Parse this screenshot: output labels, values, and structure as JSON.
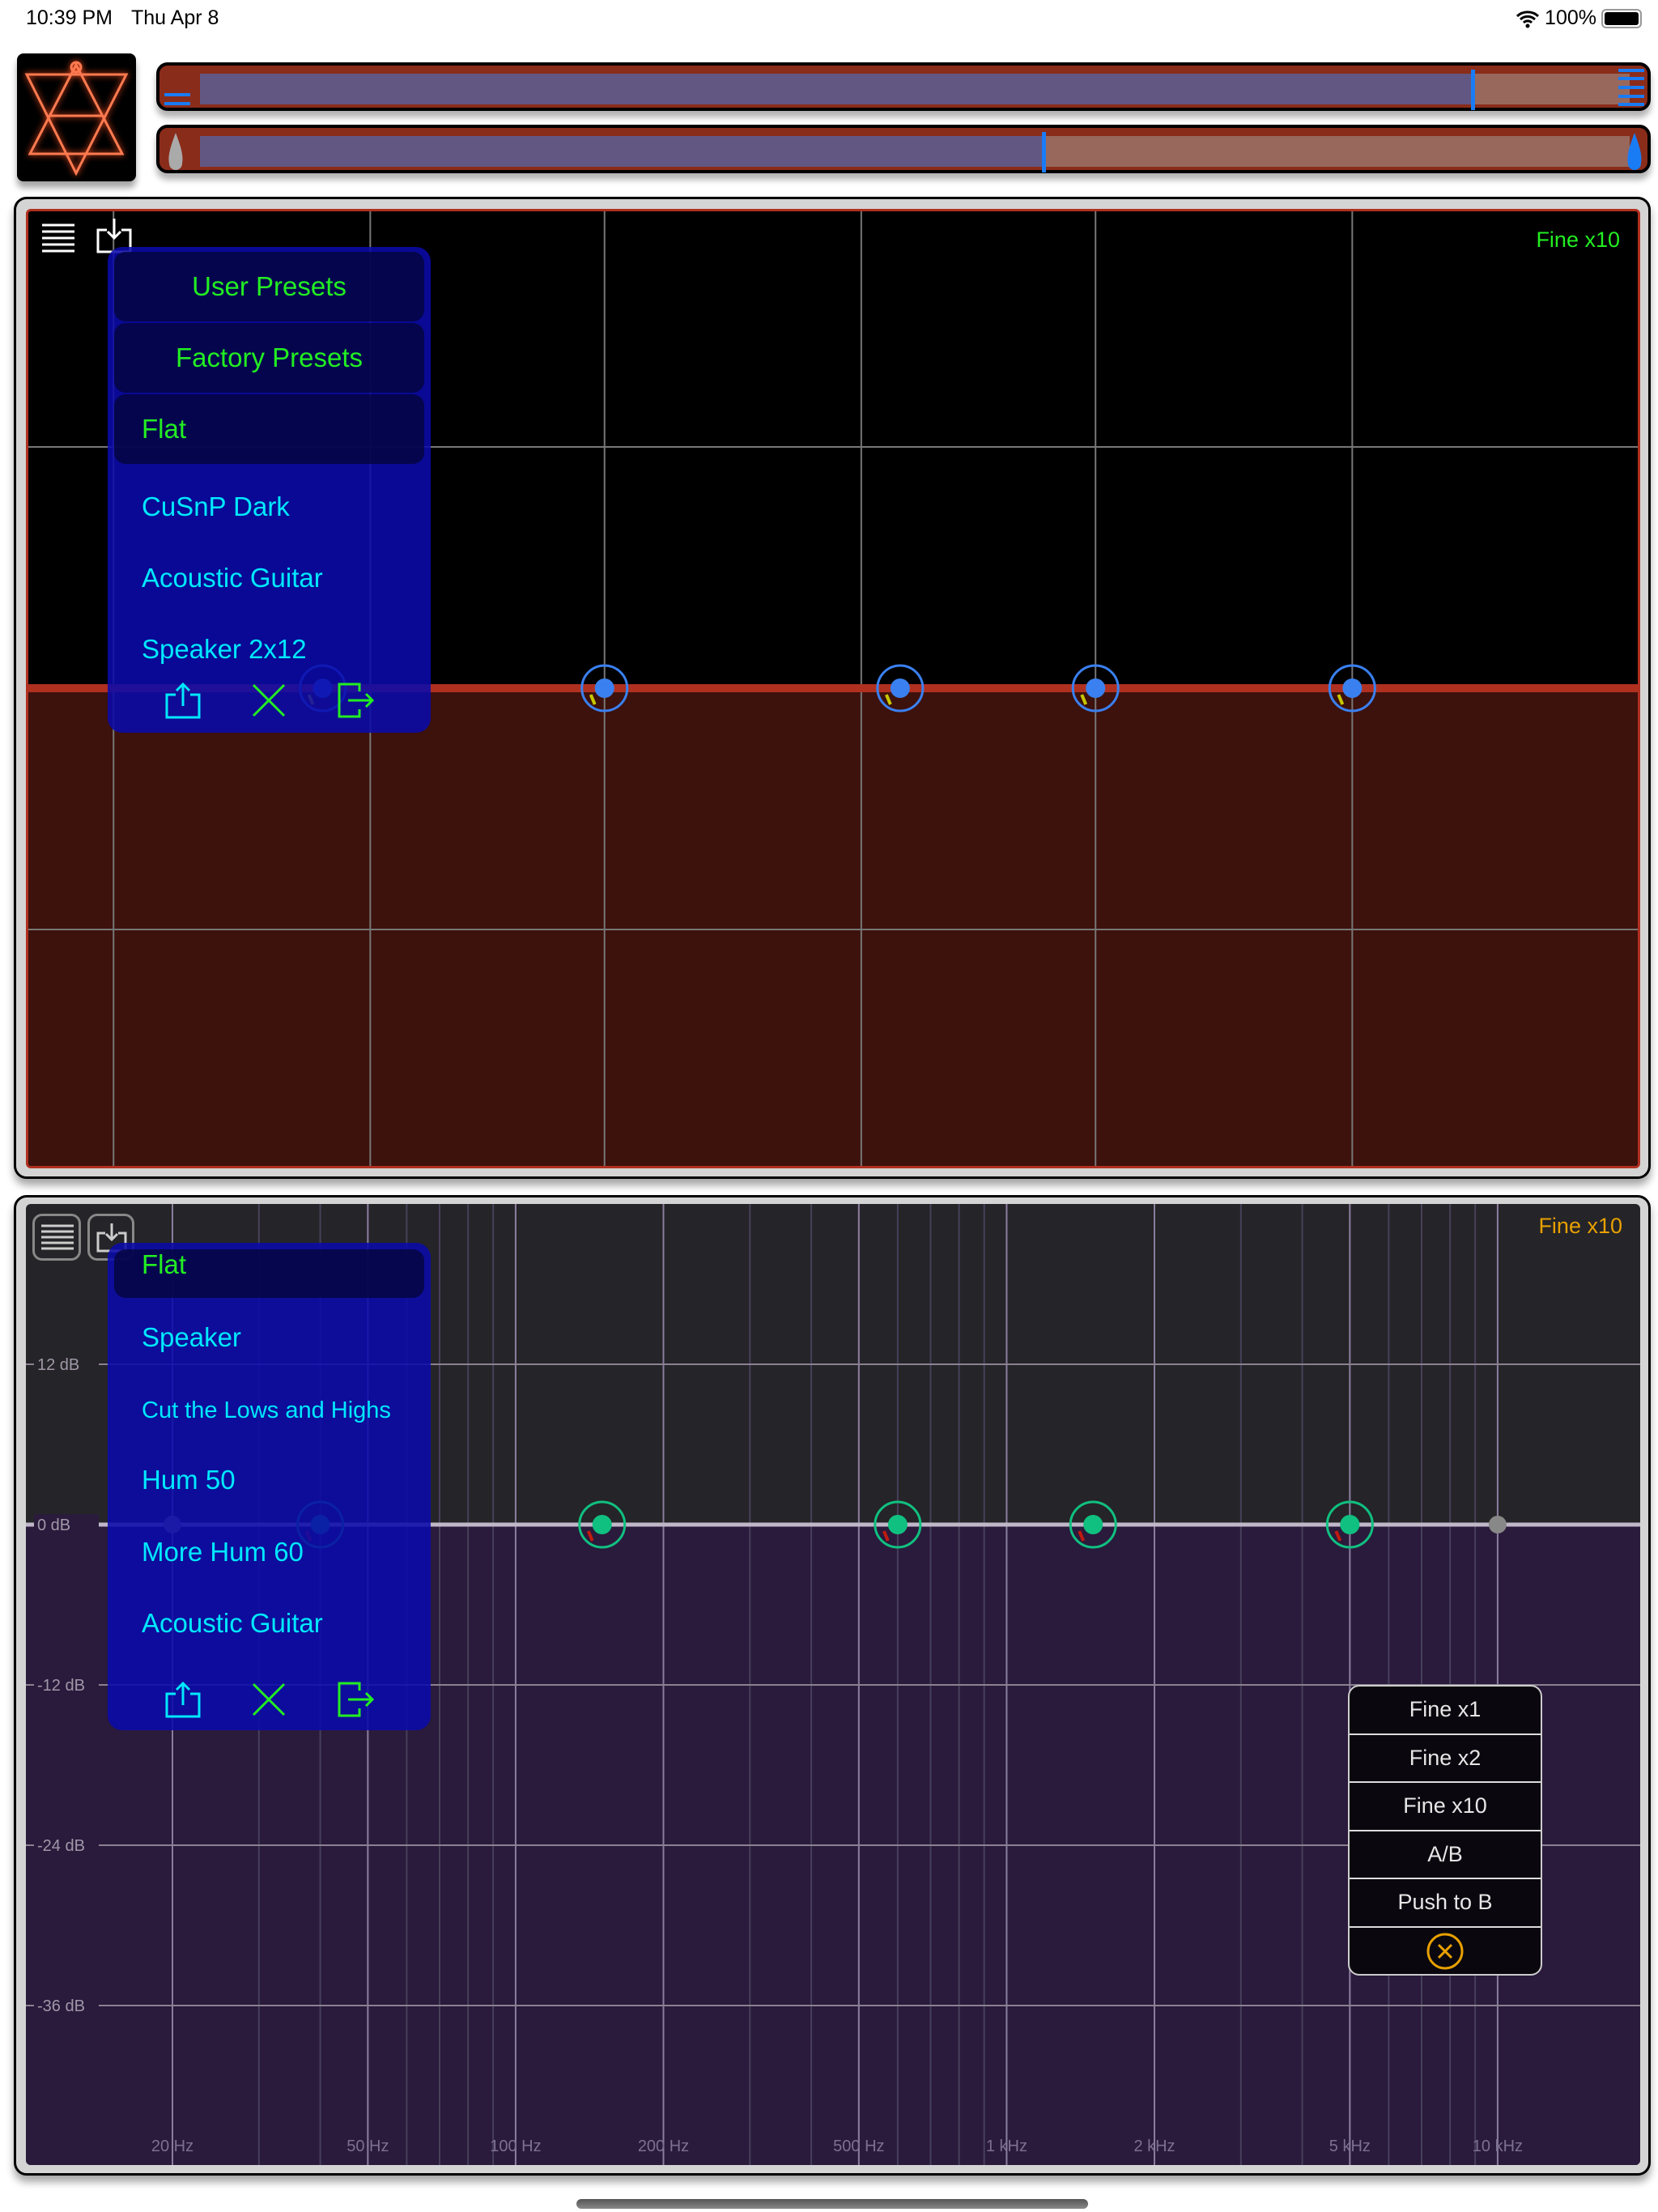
{
  "status_bar": {
    "time": "10:39 PM",
    "date": "Thu Apr 8",
    "battery": "100%"
  },
  "sliders": {
    "top": {
      "value": 0.89
    },
    "mix": {
      "value": 0.59
    }
  },
  "colors": {
    "accent": "#1a7cf5",
    "bar": "#8a2c1a",
    "track": "#625682",
    "menu_bg": "#0a0aaa",
    "green": "#22ee22",
    "cyan": "#00e8ff",
    "fine_orange": "#e8a000"
  },
  "panel_a": {
    "fine_label": "Fine x10",
    "menu": {
      "headers": [
        "User Presets",
        "Factory Presets"
      ],
      "items": [
        "Flat",
        "CuSnP Dark",
        "Acoustic Guitar",
        "Speaker 2x12"
      ],
      "selected": "Flat"
    },
    "icons": [
      "list-icon",
      "import-icon",
      "share-icon",
      "close-icon",
      "export-icon"
    ]
  },
  "panel_b": {
    "fine_label": "Fine x10",
    "menu": {
      "items": [
        "Flat",
        "Speaker",
        "Cut the Lows and Highs",
        "Hum 50",
        "More Hum 60",
        "Acoustic Guitar"
      ],
      "selected": "Flat"
    },
    "db_labels": [
      "12 dB",
      "0 dB",
      "-12 dB",
      "-24 dB",
      "-36 dB"
    ],
    "freq_labels": [
      "20 Hz",
      "50 Hz",
      "100 Hz",
      "200 Hz",
      "500 Hz",
      "1 kHz",
      "2 kHz",
      "5 kHz",
      "10 kHz"
    ]
  },
  "fine_menu": {
    "items": [
      "Fine x1",
      "Fine x2",
      "Fine x10",
      "A/B",
      "Push to B"
    ]
  },
  "eq_bands": [
    {
      "freq_hz": 20,
      "gain_db": 0,
      "active": false
    },
    {
      "freq_hz": 40,
      "gain_db": 0,
      "active": true
    },
    {
      "freq_hz": 150,
      "gain_db": 0,
      "active": true
    },
    {
      "freq_hz": 600,
      "gain_db": 0,
      "active": true
    },
    {
      "freq_hz": 1500,
      "gain_db": 0,
      "active": true
    },
    {
      "freq_hz": 5000,
      "gain_db": 0,
      "active": true
    },
    {
      "freq_hz": 10000,
      "gain_db": 0,
      "active": false
    }
  ]
}
